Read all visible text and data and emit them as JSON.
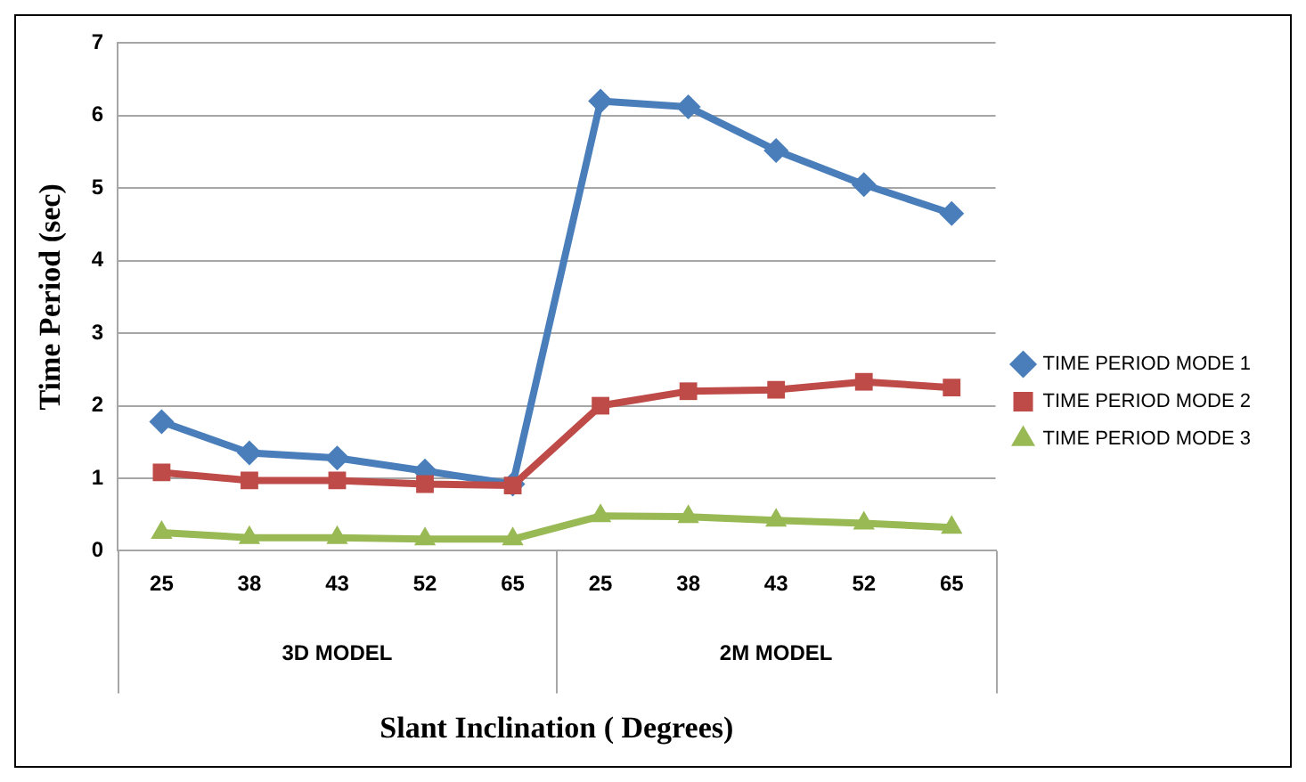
{
  "chart_data": {
    "type": "line",
    "xlabel": "Slant Inclination ( Degrees)",
    "ylabel": "Time Period (sec)",
    "categories": [
      "25",
      "38",
      "43",
      "52",
      "65",
      "25",
      "38",
      "43",
      "52",
      "65"
    ],
    "series": [
      {
        "name": "TIME PERIOD MODE 1",
        "color": "#4a7ebb",
        "marker": "diamond",
        "values": [
          1.78,
          1.35,
          1.28,
          1.1,
          0.92,
          6.2,
          6.12,
          5.52,
          5.05,
          4.65
        ]
      },
      {
        "name": "TIME PERIOD MODE 2",
        "color": "#be4b48",
        "marker": "square",
        "values": [
          1.08,
          0.97,
          0.97,
          0.92,
          0.9,
          2.0,
          2.2,
          2.22,
          2.33,
          2.25
        ]
      },
      {
        "name": "TIME PERIOD MODE 3",
        "color": "#98b954",
        "marker": "triangle",
        "values": [
          0.25,
          0.18,
          0.18,
          0.16,
          0.16,
          0.48,
          0.47,
          0.42,
          0.38,
          0.32
        ]
      }
    ],
    "annotations": [
      "3D MODEL",
      "2M MODEL"
    ],
    "ylim": [
      0,
      7
    ],
    "yticks": [
      0,
      1,
      2,
      3,
      4,
      5,
      6,
      7
    ],
    "grid": "y",
    "legend": "right",
    "line_style": "solid"
  }
}
